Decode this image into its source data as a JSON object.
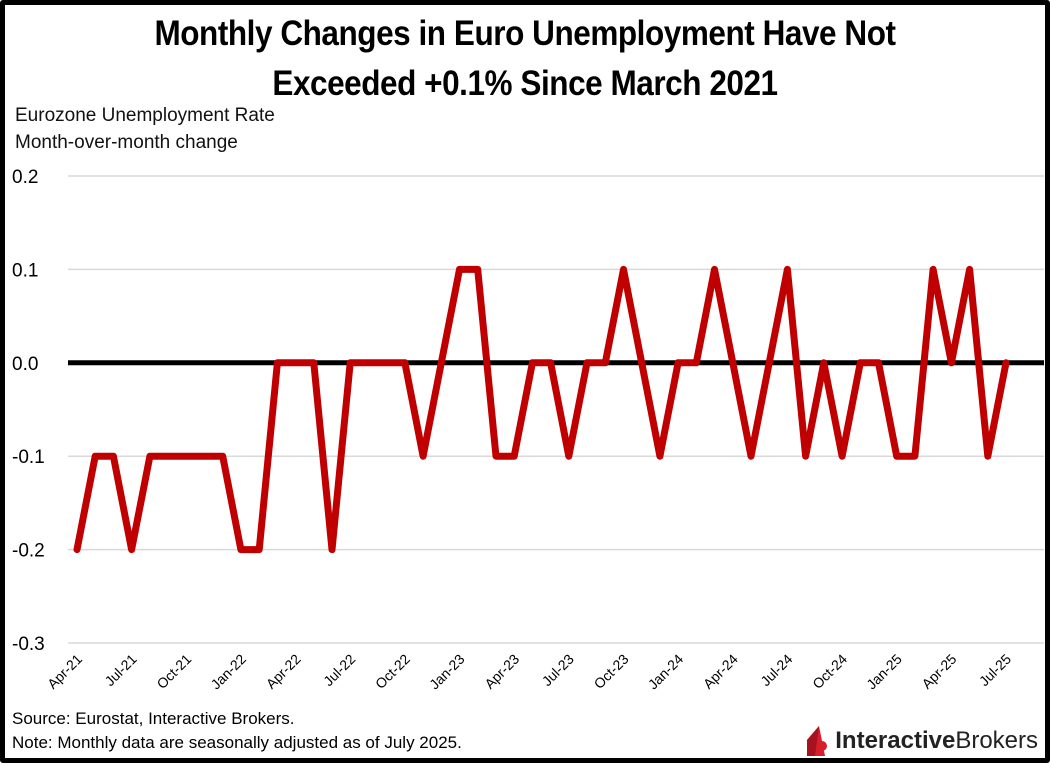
{
  "chart_data": {
    "type": "line",
    "title_line1": "Monthly Changes in Euro Unemployment Have Not",
    "title_line2": "Exceeded +0.1% Since March 2021",
    "subtitle_line1": "Eurozone Unemployment Rate",
    "subtitle_line2": "Month-over-month change",
    "xlabel": "",
    "ylabel": "",
    "ylim": [
      -0.3,
      0.2
    ],
    "y_ticks": [
      0.2,
      0.1,
      0.0,
      -0.1,
      -0.2,
      -0.3
    ],
    "y_tick_labels": [
      "0.2",
      "0.1",
      "0.0",
      "-0.1",
      "-0.2",
      "-0.3"
    ],
    "grid": true,
    "x": [
      "Apr-21",
      "May-21",
      "Jun-21",
      "Jul-21",
      "Aug-21",
      "Sep-21",
      "Oct-21",
      "Nov-21",
      "Dec-21",
      "Jan-22",
      "Feb-22",
      "Mar-22",
      "Apr-22",
      "May-22",
      "Jun-22",
      "Jul-22",
      "Aug-22",
      "Sep-22",
      "Oct-22",
      "Nov-22",
      "Dec-22",
      "Jan-23",
      "Feb-23",
      "Mar-23",
      "Apr-23",
      "May-23",
      "Jun-23",
      "Jul-23",
      "Aug-23",
      "Sep-23",
      "Oct-23",
      "Nov-23",
      "Dec-23",
      "Jan-24",
      "Feb-24",
      "Mar-24",
      "Apr-24",
      "May-24",
      "Jun-24",
      "Jul-24",
      "Aug-24",
      "Sep-24",
      "Oct-24",
      "Nov-24",
      "Dec-24",
      "Jan-25",
      "Feb-25",
      "Mar-25",
      "Apr-25",
      "May-25",
      "Jun-25",
      "Jul-25"
    ],
    "x_tick_labels": [
      "Apr-21",
      "Jul-21",
      "Oct-21",
      "Jan-22",
      "Apr-22",
      "Jul-22",
      "Oct-22",
      "Jan-23",
      "Apr-23",
      "Jul-23",
      "Oct-23",
      "Jan-24",
      "Apr-24",
      "Jul-24",
      "Oct-24",
      "Jan-25",
      "Apr-25",
      "Jul-25"
    ],
    "series": [
      {
        "name": "Eurozone Unemployment Rate MoM change",
        "color": "#c00000",
        "values": [
          -0.2,
          -0.1,
          -0.1,
          -0.2,
          -0.1,
          -0.1,
          -0.1,
          -0.1,
          -0.1,
          -0.2,
          -0.2,
          0.0,
          0.0,
          0.0,
          -0.2,
          0.0,
          0.0,
          0.0,
          0.0,
          -0.1,
          0.0,
          0.1,
          0.1,
          -0.1,
          -0.1,
          0.0,
          0.0,
          -0.1,
          0.0,
          0.0,
          0.1,
          0.0,
          -0.1,
          0.0,
          0.0,
          0.1,
          0.0,
          -0.1,
          0.0,
          0.1,
          -0.1,
          0.0,
          -0.1,
          0.0,
          0.0,
          -0.1,
          -0.1,
          0.1,
          0.0,
          0.1,
          -0.1,
          0.0
        ]
      }
    ],
    "zero_line_color": "#000000",
    "grid_color": "#d9d9d9"
  },
  "footer": {
    "source": "Source: Eurostat, Interactive Brokers.",
    "note": "Note: Monthly data are seasonally adjusted as of July 2025."
  },
  "logo": {
    "bold": "Interactive",
    "regular": "Brokers",
    "color": "#d81e2c"
  }
}
